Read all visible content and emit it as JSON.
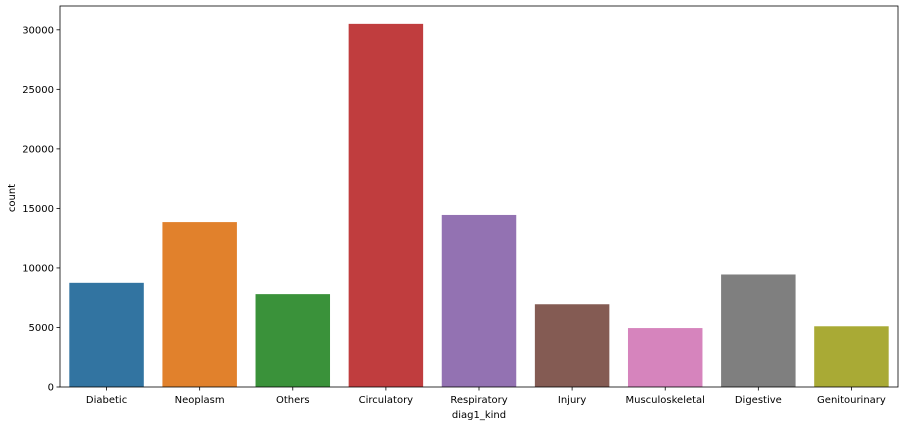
{
  "chart_data": {
    "type": "bar",
    "title": "",
    "xlabel": "diag1_kind",
    "ylabel": "count",
    "categories": [
      "Diabetic",
      "Neoplasm",
      "Others",
      "Circulatory",
      "Respiratory",
      "Injury",
      "Musculoskeletal",
      "Digestive",
      "Genitourinary"
    ],
    "values": [
      8750,
      13850,
      7800,
      30500,
      14450,
      6950,
      4950,
      9450,
      5100
    ],
    "colors": [
      "#3274a1",
      "#e1812c",
      "#3a923a",
      "#c03d3e",
      "#9372b2",
      "#845b53",
      "#d684bd",
      "#7f7f7f",
      "#a9aa35"
    ],
    "ylim": [
      0,
      32000
    ],
    "yticks": [
      0,
      5000,
      10000,
      15000,
      20000,
      25000,
      30000
    ],
    "grid": false,
    "legend": "none"
  }
}
